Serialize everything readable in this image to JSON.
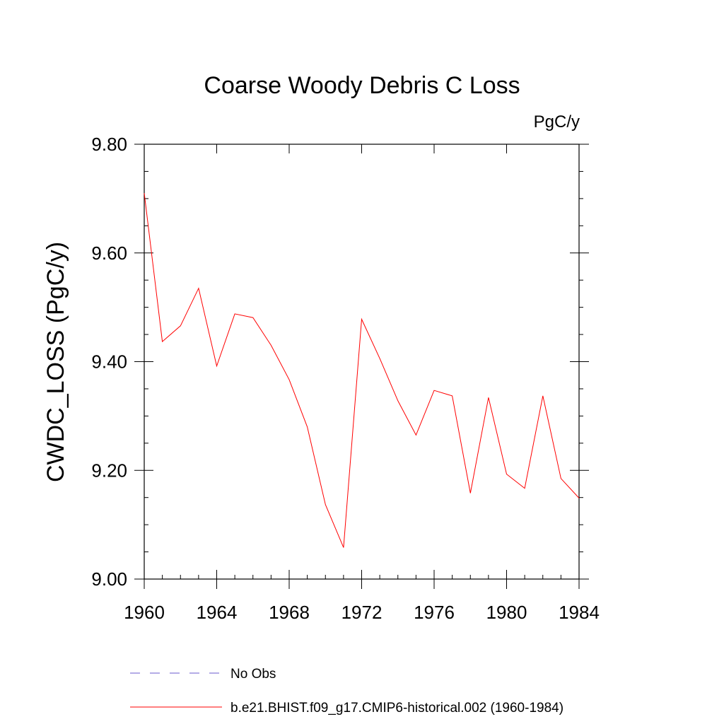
{
  "chart_data": {
    "type": "line",
    "title": "Coarse Woody Debris C Loss",
    "units_label": "PgC/y",
    "ylabel": "CWDC_LOSS  (PgC/y)",
    "xlabel": "",
    "xlim": [
      1960,
      1984
    ],
    "ylim": [
      9.0,
      9.8
    ],
    "x_ticks": [
      1960,
      1964,
      1968,
      1972,
      1976,
      1980,
      1984
    ],
    "x_tick_labels": [
      "1960",
      "1964",
      "1968",
      "1972",
      "1976",
      "1980",
      "1984"
    ],
    "y_ticks": [
      9.0,
      9.2,
      9.4,
      9.6,
      9.8
    ],
    "y_tick_labels": [
      "9.00",
      "9.20",
      "9.40",
      "9.60",
      "9.80"
    ],
    "grid": false,
    "legend_position": "bottom",
    "x": [
      1960,
      1961,
      1962,
      1963,
      1964,
      1965,
      1966,
      1967,
      1968,
      1969,
      1970,
      1971,
      1972,
      1973,
      1974,
      1975,
      1976,
      1977,
      1978,
      1979,
      1980,
      1981,
      1982,
      1983,
      1984
    ],
    "series": [
      {
        "name": "b.e21.BHIST.f09_g17.CMIP6-historical.002 (1960-1984)",
        "color": "#ff0000",
        "style": "solid",
        "values": [
          9.71,
          9.437,
          9.466,
          9.535,
          9.392,
          9.488,
          9.481,
          9.43,
          9.367,
          9.28,
          9.137,
          9.058,
          9.478,
          9.406,
          9.328,
          9.265,
          9.347,
          9.337,
          9.158,
          9.334,
          9.193,
          9.167,
          9.337,
          9.185,
          9.149
        ]
      }
    ],
    "legend": [
      {
        "label": "No Obs",
        "color": "#6a5acd",
        "style": "dashed"
      },
      {
        "label": "b.e21.BHIST.f09_g17.CMIP6-historical.002 (1960-1984)",
        "color": "#ff0000",
        "style": "solid"
      }
    ]
  }
}
